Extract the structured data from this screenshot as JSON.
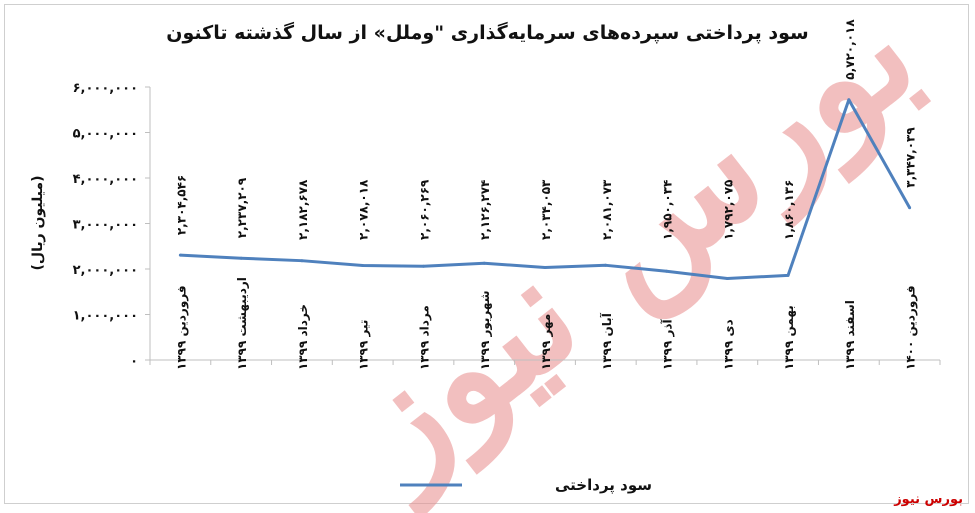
{
  "title": "سود پرداختی سپرده‌های سرمایه‌گذاری \"وملل» از سال گذشته تاکنون",
  "credit": "بورس نیوز",
  "watermark": "بورس نیوز",
  "colors": {
    "line": "#4f81bd",
    "axis": "#bfbfbf",
    "watermark": "#e88c8c",
    "credit": "#cc0000"
  },
  "chart_data": {
    "type": "line",
    "title": "سود پرداختی سپرده‌های سرمایه‌گذاری \"وملل» از سال گذشته تاکنون",
    "ylabel": "(میلیون ریال)",
    "xlabel": "",
    "ylim": [
      0,
      6000000
    ],
    "yticks": [
      0,
      1000000,
      2000000,
      3000000,
      4000000,
      5000000,
      6000000
    ],
    "ytick_labels": [
      "۰",
      "۱,۰۰۰,۰۰۰",
      "۲,۰۰۰,۰۰۰",
      "۳,۰۰۰,۰۰۰",
      "۴,۰۰۰,۰۰۰",
      "۵,۰۰۰,۰۰۰",
      "۶,۰۰۰,۰۰۰"
    ],
    "grid": false,
    "legend": "bottom",
    "categories": [
      "فروردین ۱۳۹۹",
      "اردیبهشت ۱۳۹۹",
      "خرداد ۱۳۹۹",
      "تیر ۱۳۹۹",
      "مرداد ۱۳۹۹",
      "شهریور ۱۳۹۹",
      "مهر ۱۳۹۹",
      "آبان ۱۳۹۹",
      "آذر ۱۳۹۹",
      "دی ۱۳۹۹",
      "بهمن ۱۳۹۹",
      "اسفند ۱۳۹۹",
      "فروردین ۱۴۰۰"
    ],
    "series": [
      {
        "name": "سود پرداختی",
        "values": [
          2304546,
          2237209,
          2182678,
          2078018,
          2060269,
          2126274,
          2034053,
          2081073,
          1950034,
          1792075,
          1860136,
          5720018,
          3347039
        ],
        "data_labels": [
          "۲,۳۰۴,۵۴۶",
          "۲,۲۳۷,۲۰۹",
          "۲,۱۸۲,۶۷۸",
          "۲,۰۷۸,۰۱۸",
          "۲,۰۶۰,۲۶۹",
          "۲,۱۲۶,۲۷۴",
          "۲,۰۳۴,۰۵۳",
          "۲,۰۸۱,۰۷۳",
          "۱,۹۵۰,۰۳۴",
          "۱,۷۹۲,۰۷۵",
          "۱,۸۶۰,۱۳۶",
          "۵,۷۲۰,۰۱۸",
          "۳,۳۴۷,۰۳۹"
        ]
      }
    ]
  }
}
